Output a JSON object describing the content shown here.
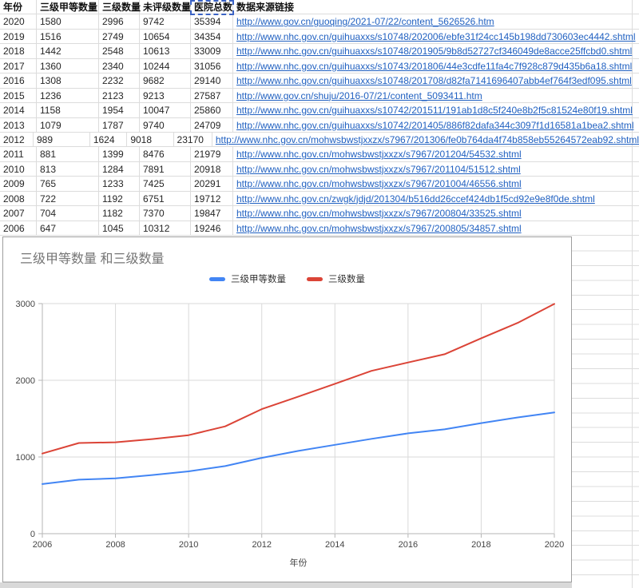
{
  "table": {
    "headers": [
      "年份",
      "三级甲等数量",
      "三级数量",
      "未评级数量",
      "医院总数",
      "数据来源链接"
    ],
    "marquee_header": "医院总数",
    "rows": [
      [
        "2020",
        "1580",
        "2996",
        "9742",
        "35394",
        "http://www.gov.cn/guoqing/2021-07/22/content_5626526.htm"
      ],
      [
        "2019",
        "1516",
        "2749",
        "10654",
        "34354",
        "http://www.nhc.gov.cn/guihuaxxs/s10748/202006/ebfe31f24cc145b198dd730603ec4442.shtml"
      ],
      [
        "2018",
        "1442",
        "2548",
        "10613",
        "33009",
        "http://www.nhc.gov.cn/guihuaxxs/s10748/201905/9b8d52727cf346049de8acce25ffcbd0.shtml"
      ],
      [
        "2017",
        "1360",
        "2340",
        "10244",
        "31056",
        "http://www.nhc.gov.cn/guihuaxxs/s10743/201806/44e3cdfe11fa4c7f928c879d435b6a18.shtml"
      ],
      [
        "2016",
        "1308",
        "2232",
        "9682",
        "29140",
        "http://www.nhc.gov.cn/guihuaxxs/s10748/201708/d82fa7141696407abb4ef764f3edf095.shtml"
      ],
      [
        "2015",
        "1236",
        "2123",
        "9213",
        "27587",
        "http://www.gov.cn/shuju/2016-07/21/content_5093411.htm"
      ],
      [
        "2014",
        "1158",
        "1954",
        "10047",
        "25860",
        "http://www.nhc.gov.cn/guihuaxxs/s10742/201511/191ab1d8c5f240e8b2f5c81524e80f19.shtml"
      ],
      [
        "2013",
        "1079",
        "1787",
        "9740",
        "24709",
        "http://www.nhc.gov.cn/guihuaxxs/s10742/201405/886f82dafa344c3097f1d16581a1bea2.shtml"
      ],
      [
        "2012",
        "989",
        "1624",
        "9018",
        "23170",
        "http://www.nhc.gov.cn/mohwsbwstjxxzx/s7967/201306/fe0b764da4f74b858eb55264572eab92.shtml"
      ],
      [
        "2011",
        "881",
        "1399",
        "8476",
        "21979",
        "http://www.nhc.gov.cn/mohwsbwstjxxzx/s7967/201204/54532.shtml"
      ],
      [
        "2010",
        "813",
        "1284",
        "7891",
        "20918",
        "http://www.nhc.gov.cn/mohwsbwstjxxzx/s7967/201104/51512.shtml"
      ],
      [
        "2009",
        "765",
        "1233",
        "7425",
        "20291",
        "http://www.nhc.gov.cn/mohwsbwstjxxzx/s7967/201004/46556.shtml"
      ],
      [
        "2008",
        "722",
        "1192",
        "6751",
        "19712",
        "http://www.nhc.gov.cn/zwgk/jdjd/201304/b516dd26ccef424db1f5cd92e9e8f0de.shtml"
      ],
      [
        "2007",
        "704",
        "1182",
        "7370",
        "19847",
        "http://www.nhc.gov.cn/mohwsbwstjxxzx/s7967/200804/33525.shtml"
      ],
      [
        "2006",
        "647",
        "1045",
        "10312",
        "19246",
        "http://www.nhc.gov.cn/mohwsbwstjxxzx/s7967/200805/34857.shtml"
      ]
    ]
  },
  "chart_data": {
    "type": "line",
    "title": "三级甲等数量 和三级数量",
    "xlabel": "年份",
    "ylabel": "",
    "x": [
      2006,
      2007,
      2008,
      2009,
      2010,
      2011,
      2012,
      2013,
      2014,
      2015,
      2016,
      2017,
      2018,
      2019,
      2020
    ],
    "series": [
      {
        "name": "三级甲等数量",
        "color": "#4285f4",
        "values": [
          647,
          704,
          722,
          765,
          813,
          881,
          989,
          1079,
          1158,
          1236,
          1308,
          1360,
          1442,
          1516,
          1580
        ]
      },
      {
        "name": "三级数量",
        "color": "#db4437",
        "values": [
          1045,
          1182,
          1192,
          1233,
          1284,
          1399,
          1624,
          1787,
          1954,
          2123,
          2232,
          2340,
          2548,
          2749,
          2996
        ]
      }
    ],
    "xlim": [
      2006,
      2020
    ],
    "ylim": [
      0,
      3000
    ],
    "xticks": [
      2006,
      2008,
      2010,
      2012,
      2014,
      2016,
      2018,
      2020
    ],
    "yticks": [
      0,
      1000,
      2000,
      3000
    ],
    "grid": true,
    "legend_position": "top-center"
  }
}
